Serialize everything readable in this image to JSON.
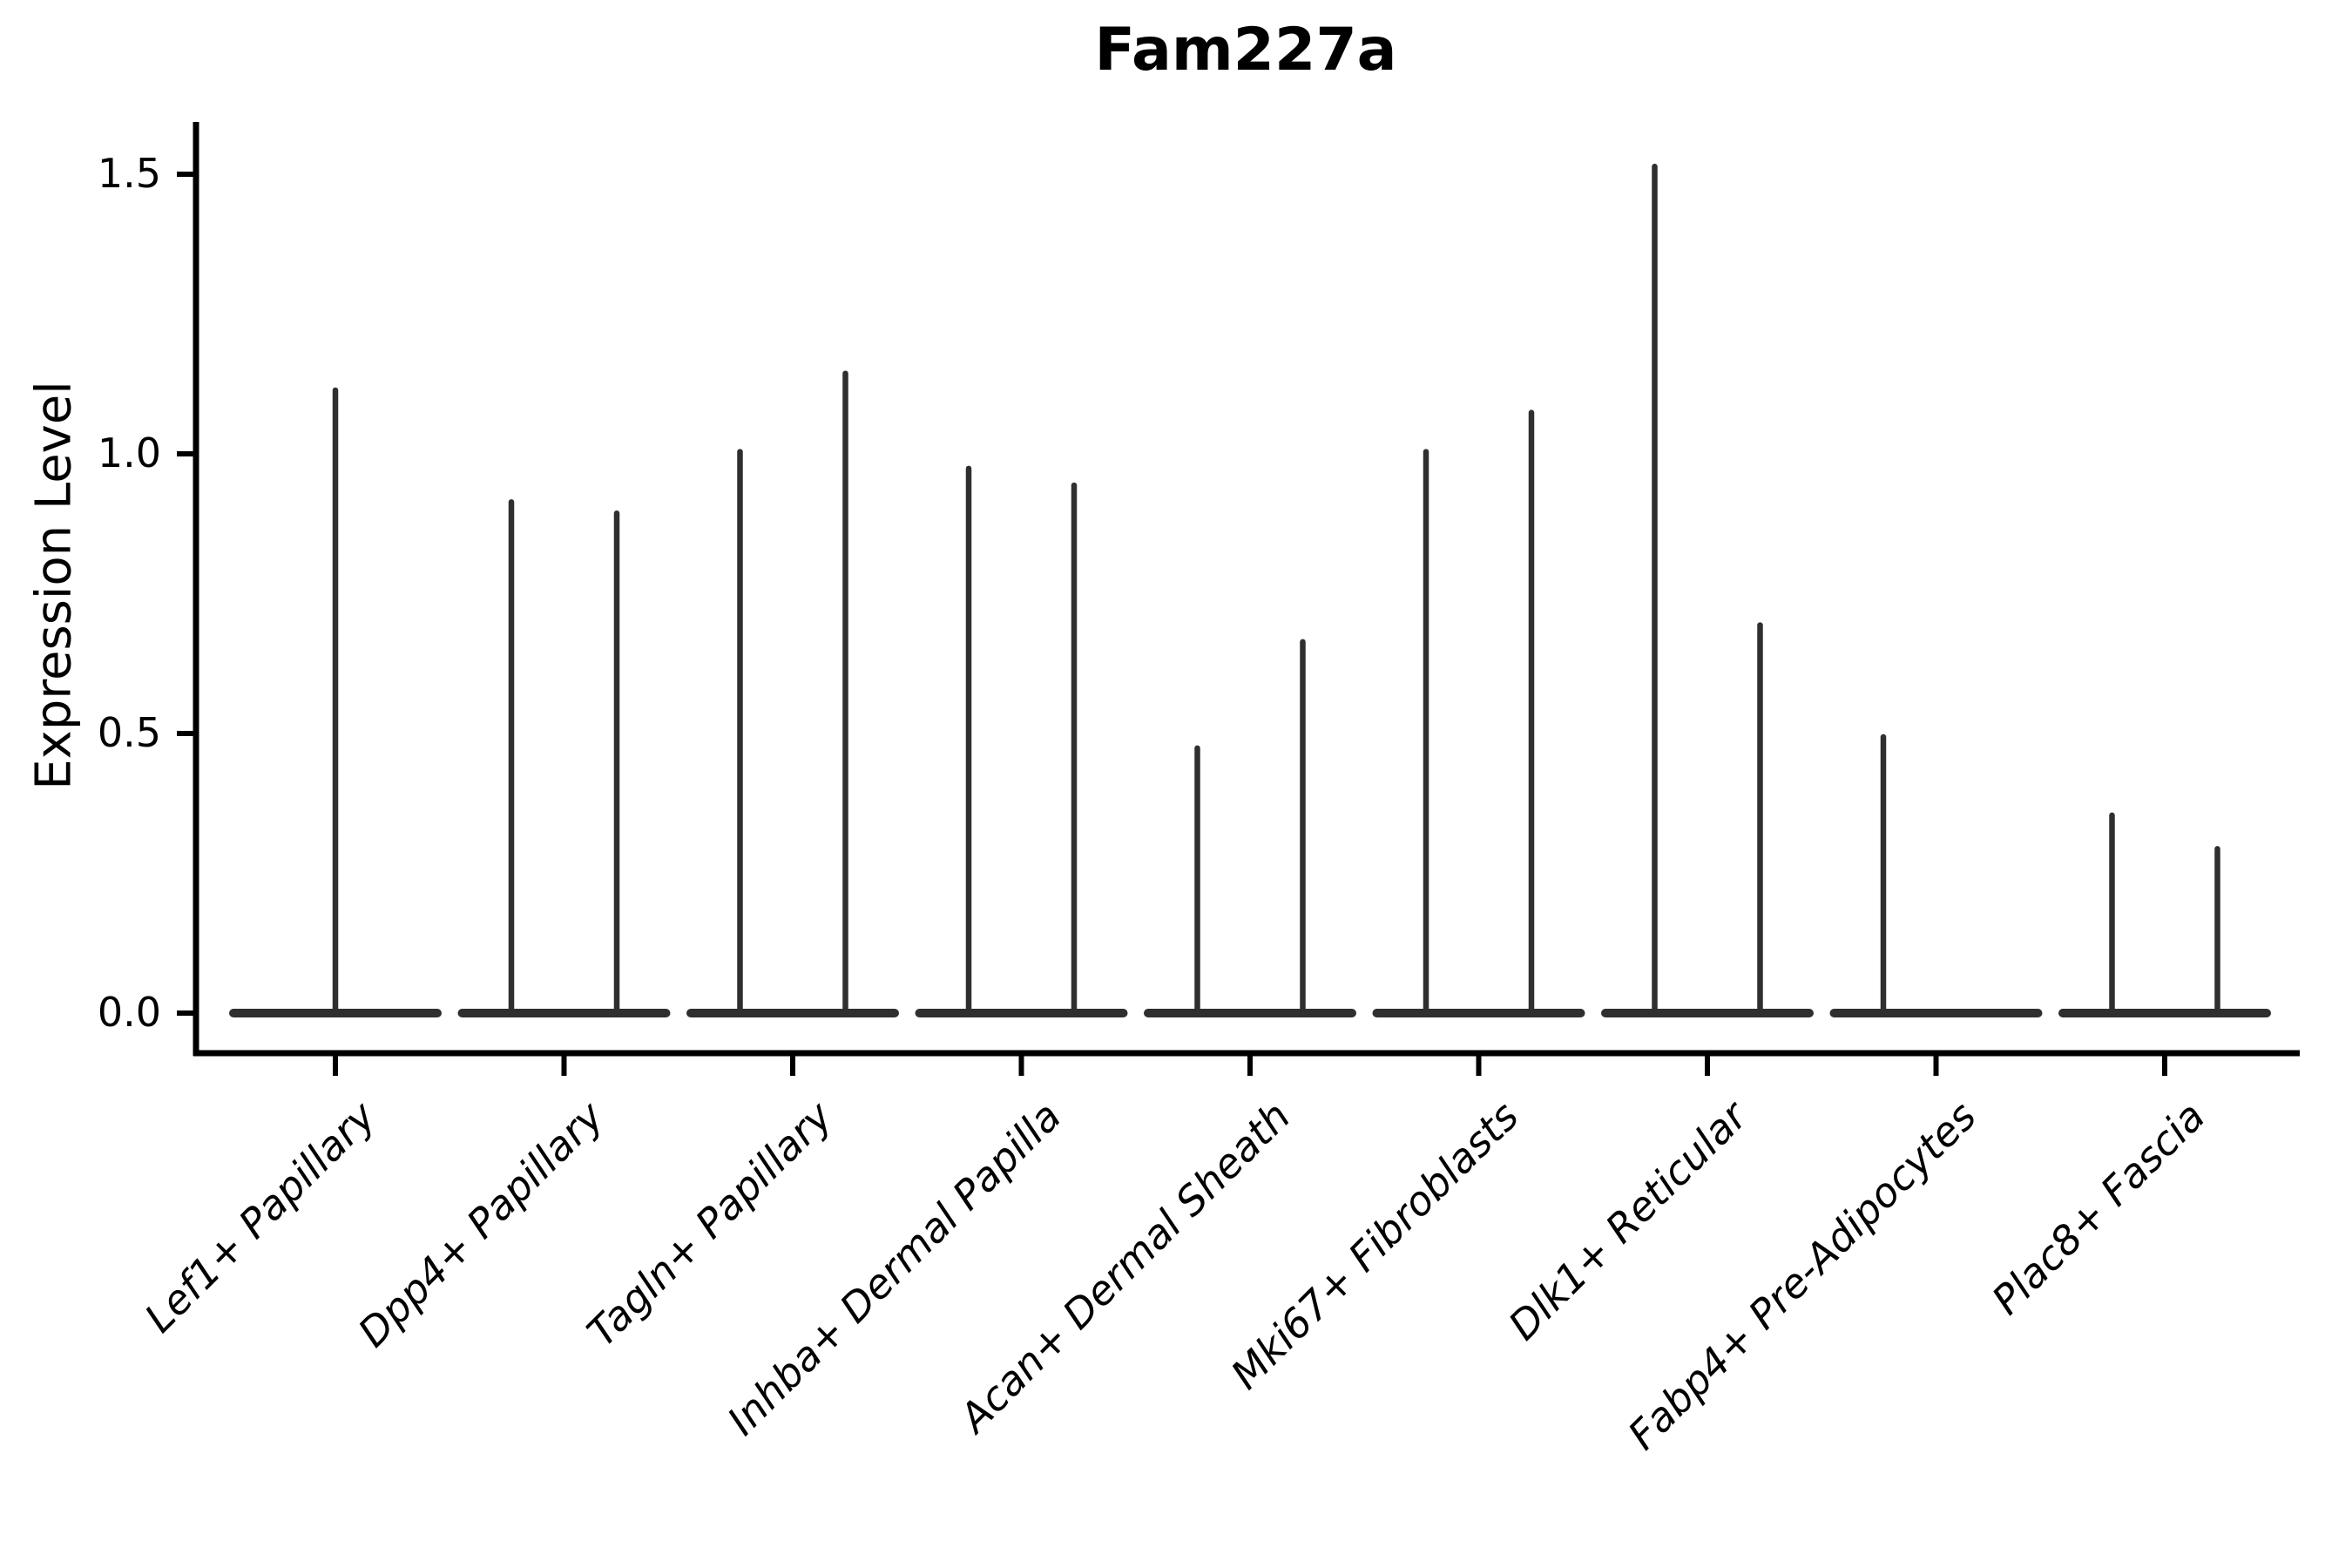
{
  "chart_data": {
    "type": "violin",
    "title": "Fam227a",
    "ylabel": "Expression Level",
    "xlabel": "",
    "ylim": [
      -0.07,
      1.59
    ],
    "yticks": [
      0.0,
      0.5,
      1.0,
      1.5
    ],
    "ytick_labels": [
      "0.0",
      "0.5",
      "1.0",
      "1.5"
    ],
    "grid": false,
    "legend_position": "none",
    "categories": [
      {
        "label": "Lef1+ Papillary",
        "violins": [
          1.12
        ]
      },
      {
        "label": "Dpp4+ Papillary",
        "violins": [
          0.92,
          0.9
        ]
      },
      {
        "label": "Tagln+ Papillary",
        "violins": [
          1.01,
          1.15
        ]
      },
      {
        "label": "Inhba+ Dermal Papilla",
        "violins": [
          0.98,
          0.95
        ]
      },
      {
        "label": "Acan+ Dermal Sheath",
        "violins": [
          0.48,
          0.67
        ]
      },
      {
        "label": "Mki67+ Fibroblasts",
        "violins": [
          1.01,
          1.08
        ]
      },
      {
        "label": "Dlk1+ Reticular",
        "violins": [
          1.52,
          0.7
        ]
      },
      {
        "label": "Fabp4+ Pre-Adipocytes",
        "violins": [
          0.5,
          0
        ]
      },
      {
        "label": "Plac8+ Fascia",
        "violins": [
          0.36,
          0.3
        ]
      }
    ]
  },
  "colors": {
    "background": "#ffffff",
    "axis": "#000000",
    "text": "#000000",
    "violin": "#2f2f2f"
  }
}
